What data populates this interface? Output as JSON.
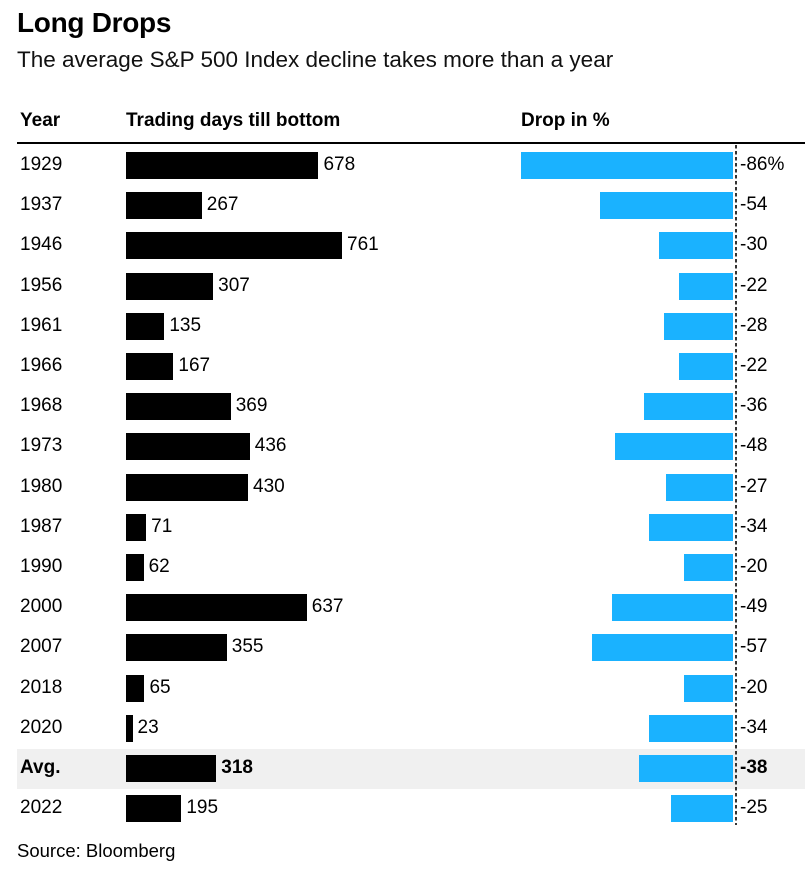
{
  "title": "Long Drops",
  "subtitle": "The average S&P 500 Index decline takes more than a year",
  "headers": {
    "year": "Year",
    "days": "Trading days till bottom",
    "drop": "Drop in %"
  },
  "source": "Source: Bloomberg",
  "colors": {
    "days_bar": "#000000",
    "drop_bar": "#1ab2ff",
    "avg_row_bg": "#f0f0f0"
  },
  "chart_data": {
    "type": "bar",
    "title": "Long Drops",
    "subtitle": "The average S&P 500 Index decline takes more than a year",
    "categories": [
      "1929",
      "1937",
      "1946",
      "1956",
      "1961",
      "1966",
      "1968",
      "1973",
      "1980",
      "1987",
      "1990",
      "2000",
      "2007",
      "2018",
      "2020",
      "Avg.",
      "2022"
    ],
    "series": [
      {
        "name": "Trading days till bottom",
        "values": [
          678,
          267,
          761,
          307,
          135,
          167,
          369,
          436,
          430,
          71,
          62,
          637,
          355,
          65,
          23,
          318,
          195
        ],
        "labels": [
          "678",
          "267",
          "761",
          "307",
          "135",
          "167",
          "369",
          "436",
          "430",
          "71",
          "62",
          "637",
          "355",
          "65",
          "23",
          "318",
          "195"
        ]
      },
      {
        "name": "Drop in %",
        "values": [
          -86,
          -54,
          -30,
          -22,
          -28,
          -22,
          -36,
          -48,
          -27,
          -34,
          -20,
          -49,
          -57,
          -20,
          -34,
          -38,
          -25
        ],
        "labels": [
          "-86%",
          "-54",
          "-30",
          "-22",
          "-28",
          "-22",
          "-36",
          "-48",
          "-27",
          "-34",
          "-20",
          "-49",
          "-57",
          "-20",
          "-34",
          "-38",
          "-25"
        ]
      }
    ],
    "highlight_category": "Avg.",
    "grid": false
  }
}
